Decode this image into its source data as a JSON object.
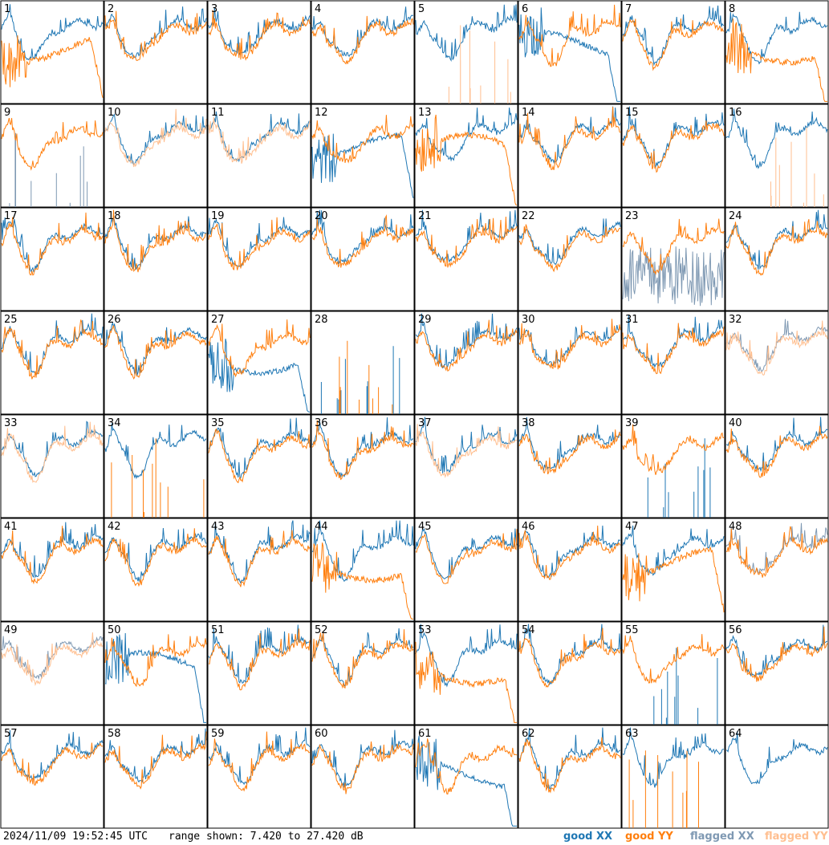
{
  "timestamp": "2024/11/09 19:52:45 UTC",
  "range_text": "range shown: 7.420 to 27.420 dB",
  "legend": [
    {
      "label": "good XX",
      "color": "#1f77b4"
    },
    {
      "label": "good YY",
      "color": "#ff7f0e"
    },
    {
      "label": "flagged XX",
      "color": "#7f99b3"
    },
    {
      "label": "flagged YY",
      "color": "#ffbf90"
    }
  ],
  "colors": {
    "good_xx": "#1f77b4",
    "good_yy": "#ff7f0e",
    "flagged_xx": "#7f99b3",
    "flagged_yy": "#ffbf90"
  },
  "chart_data": {
    "type": "line",
    "title": "",
    "ylim": [
      7.42,
      27.42
    ],
    "yunit": "dB",
    "panels": [
      {
        "id": 1,
        "xx": "good",
        "yy": "good",
        "yy_shape": "rolloff"
      },
      {
        "id": 2,
        "xx": "good",
        "yy": "good"
      },
      {
        "id": 3,
        "xx": "good",
        "yy": "good"
      },
      {
        "id": 4,
        "xx": "good",
        "yy": "good"
      },
      {
        "id": 5,
        "xx": "good",
        "yy": "flagged",
        "yy_shape": "spikes"
      },
      {
        "id": 6,
        "xx": "good",
        "yy": "good",
        "xx_shape": "rolloff"
      },
      {
        "id": 7,
        "xx": "good",
        "yy": "good"
      },
      {
        "id": 8,
        "xx": "good",
        "yy": "good",
        "yy_shape": "rolloff"
      },
      {
        "id": 9,
        "xx": "flagged",
        "yy": "good",
        "xx_shape": "spikes"
      },
      {
        "id": 10,
        "xx": "good",
        "yy": "flagged"
      },
      {
        "id": 11,
        "xx": "good",
        "yy": "flagged"
      },
      {
        "id": 12,
        "xx": "good",
        "yy": "good",
        "xx_shape": "rolloff"
      },
      {
        "id": 13,
        "xx": "good",
        "yy": "good",
        "yy_shape": "rolloff"
      },
      {
        "id": 14,
        "xx": "good",
        "yy": "good"
      },
      {
        "id": 15,
        "xx": "good",
        "yy": "good"
      },
      {
        "id": 16,
        "xx": "good",
        "yy": "flagged",
        "yy_shape": "spikes"
      },
      {
        "id": 17,
        "xx": "good",
        "yy": "good"
      },
      {
        "id": 18,
        "xx": "good",
        "yy": "good"
      },
      {
        "id": 19,
        "xx": "good",
        "yy": "good"
      },
      {
        "id": 20,
        "xx": "good",
        "yy": "good"
      },
      {
        "id": 21,
        "xx": "good",
        "yy": "good"
      },
      {
        "id": 22,
        "xx": "good",
        "yy": "good"
      },
      {
        "id": 23,
        "xx": "flagged",
        "yy": "good",
        "xx_shape": "noise"
      },
      {
        "id": 24,
        "xx": "good",
        "yy": "good"
      },
      {
        "id": 25,
        "xx": "good",
        "yy": "good"
      },
      {
        "id": 26,
        "xx": "good",
        "yy": "good"
      },
      {
        "id": 27,
        "xx": "good",
        "yy": "good",
        "xx_shape": "rolloff"
      },
      {
        "id": 28,
        "xx": "good",
        "yy": "good",
        "yy_shape": "spikes",
        "xx_shape": "spikes"
      },
      {
        "id": 29,
        "xx": "good",
        "yy": "good"
      },
      {
        "id": 30,
        "xx": "good",
        "yy": "good"
      },
      {
        "id": 31,
        "xx": "good",
        "yy": "good"
      },
      {
        "id": 32,
        "xx": "flagged",
        "yy": "flagged"
      },
      {
        "id": 33,
        "xx": "good",
        "yy": "flagged"
      },
      {
        "id": 34,
        "xx": "good",
        "yy": "good",
        "yy_shape": "spikes"
      },
      {
        "id": 35,
        "xx": "good",
        "yy": "good"
      },
      {
        "id": 36,
        "xx": "good",
        "yy": "good"
      },
      {
        "id": 37,
        "xx": "good",
        "yy": "flagged"
      },
      {
        "id": 38,
        "xx": "good",
        "yy": "good"
      },
      {
        "id": 39,
        "xx": "good",
        "yy": "good",
        "xx_shape": "spikes"
      },
      {
        "id": 40,
        "xx": "good",
        "yy": "good"
      },
      {
        "id": 41,
        "xx": "good",
        "yy": "good"
      },
      {
        "id": 42,
        "xx": "good",
        "yy": "good"
      },
      {
        "id": 43,
        "xx": "good",
        "yy": "good"
      },
      {
        "id": 44,
        "xx": "good",
        "yy": "good",
        "yy_shape": "rolloff"
      },
      {
        "id": 45,
        "xx": "good",
        "yy": "good"
      },
      {
        "id": 46,
        "xx": "good",
        "yy": "good"
      },
      {
        "id": 47,
        "xx": "good",
        "yy": "good",
        "yy_shape": "rolloff"
      },
      {
        "id": 48,
        "xx": "flagged",
        "yy": "good"
      },
      {
        "id": 49,
        "xx": "flagged",
        "yy": "flagged"
      },
      {
        "id": 50,
        "xx": "good",
        "yy": "good",
        "xx_shape": "rolloff"
      },
      {
        "id": 51,
        "xx": "good",
        "yy": "good"
      },
      {
        "id": 52,
        "xx": "good",
        "yy": "good"
      },
      {
        "id": 53,
        "xx": "good",
        "yy": "good",
        "yy_shape": "rolloff"
      },
      {
        "id": 54,
        "xx": "good",
        "yy": "good"
      },
      {
        "id": 55,
        "xx": "good",
        "yy": "good",
        "xx_shape": "spikes"
      },
      {
        "id": 56,
        "xx": "good",
        "yy": "good"
      },
      {
        "id": 57,
        "xx": "good",
        "yy": "good"
      },
      {
        "id": 58,
        "xx": "good",
        "yy": "good"
      },
      {
        "id": 59,
        "xx": "good",
        "yy": "good"
      },
      {
        "id": 60,
        "xx": "good",
        "yy": "good"
      },
      {
        "id": 61,
        "xx": "good",
        "yy": "good",
        "xx_shape": "rolloff"
      },
      {
        "id": 62,
        "xx": "good",
        "yy": "good"
      },
      {
        "id": 63,
        "xx": "good",
        "yy": "good",
        "yy_shape": "spikes"
      },
      {
        "id": 64,
        "xx": "good",
        "yy": "none"
      }
    ]
  }
}
